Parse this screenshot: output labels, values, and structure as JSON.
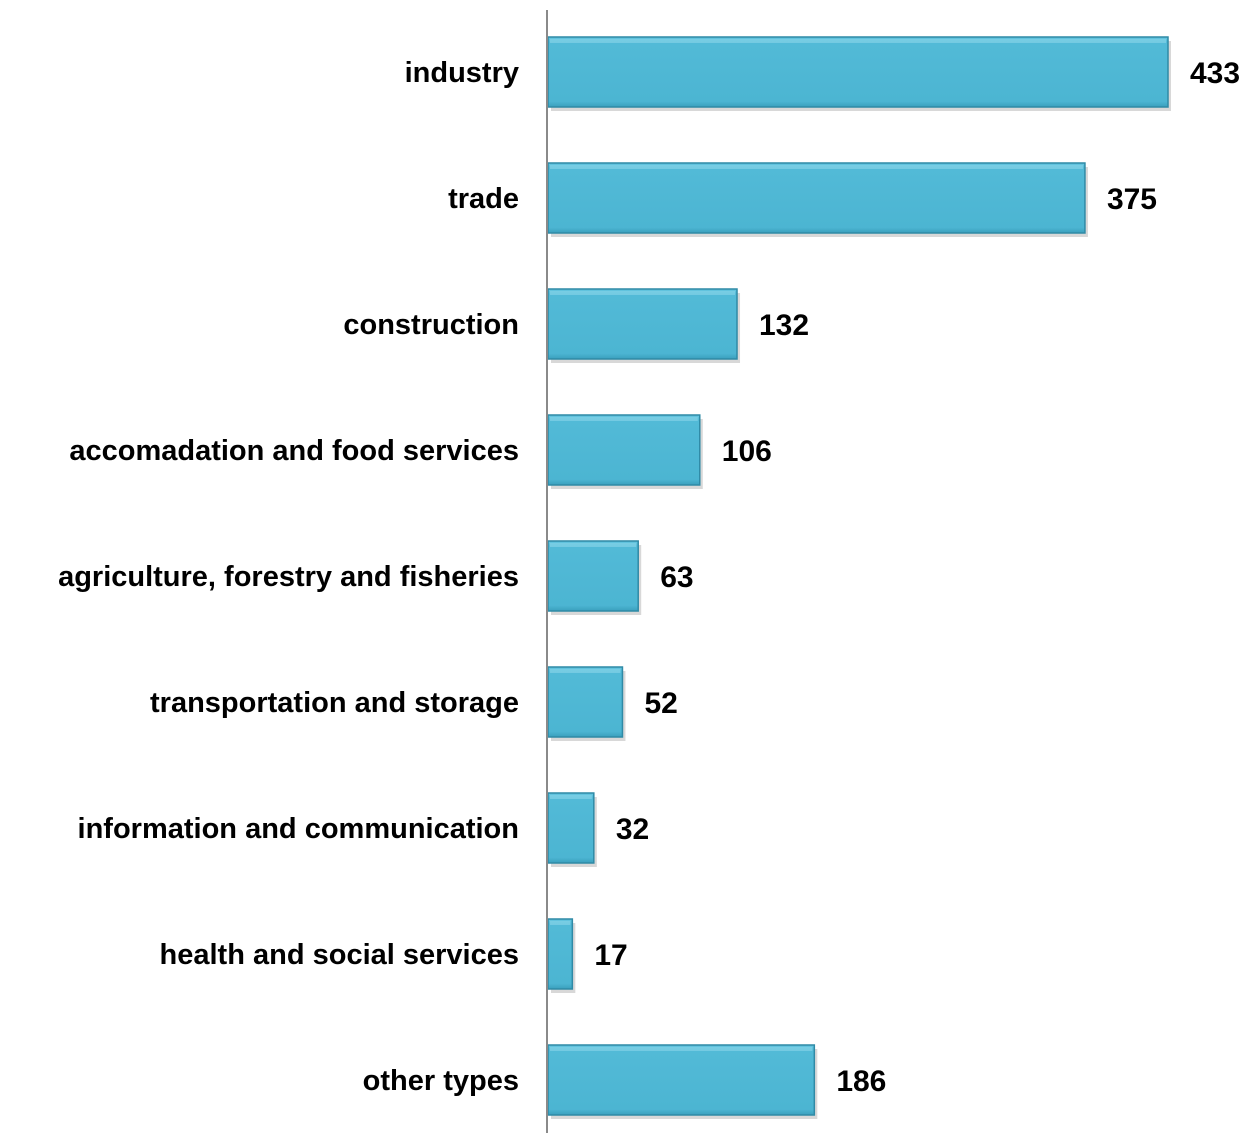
{
  "chart_data": {
    "type": "bar",
    "orientation": "horizontal",
    "categories": [
      "industry",
      "trade",
      "construction",
      "accomadation and food services",
      "agriculture, forestry and fisheries",
      "transportation and storage",
      "information and communication",
      "health and social services",
      "other types"
    ],
    "values": [
      433,
      375,
      132,
      106,
      63,
      52,
      32,
      17,
      186
    ],
    "value_labels": [
      "433",
      "375",
      "132",
      "106",
      "63",
      "52",
      "32",
      "17",
      "186"
    ],
    "title": "",
    "xlabel": "",
    "ylabel": "",
    "xlim": [
      0,
      433
    ],
    "grid": false,
    "legend": "none",
    "colors": {
      "bar": "#4fb9d6",
      "bar_edge": "#2f8aa6",
      "bar_shadow": "#b8b8b8",
      "axis": "#8a8a8a",
      "text": "#000000"
    }
  }
}
